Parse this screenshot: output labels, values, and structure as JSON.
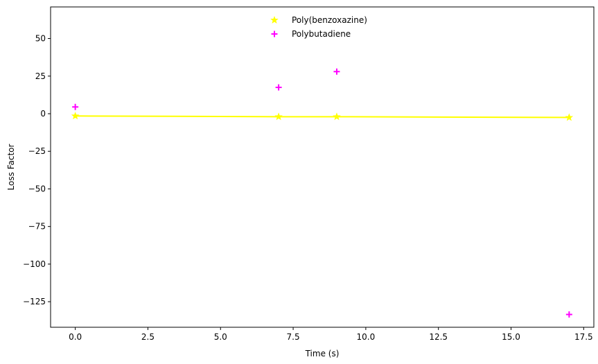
{
  "chart_data": {
    "type": "scatter",
    "title": "",
    "xlabel": "Time (s)",
    "ylabel": "Loss Factor",
    "xlim": [
      -0.85,
      17.85
    ],
    "ylim": [
      -142,
      71
    ],
    "xticks": [
      0.0,
      2.5,
      5.0,
      7.5,
      10.0,
      12.5,
      15.0,
      17.5
    ],
    "xtick_labels": [
      "0.0",
      "2.5",
      "5.0",
      "7.5",
      "10.0",
      "12.5",
      "15.0",
      "17.5"
    ],
    "yticks": [
      50,
      25,
      0,
      -25,
      -50,
      -75,
      -100,
      -125
    ],
    "ytick_labels": [
      "50",
      "25",
      "0",
      "−25",
      "−50",
      "−75",
      "−100",
      "−125"
    ],
    "grid": false,
    "legend_position": "top-center",
    "series": [
      {
        "name": "Poly(benzoxazine)",
        "color": "#ffff00",
        "marker": "star",
        "line": true,
        "x": [
          0,
          7,
          9,
          17
        ],
        "y": [
          -1.5,
          -2.0,
          -2.0,
          -2.5
        ]
      },
      {
        "name": "Polybutadiene",
        "color": "#ff00ff",
        "marker": "plus",
        "line": false,
        "x": [
          0,
          7,
          9,
          17
        ],
        "y": [
          4.5,
          17.5,
          28.0,
          -133.5
        ]
      }
    ]
  }
}
